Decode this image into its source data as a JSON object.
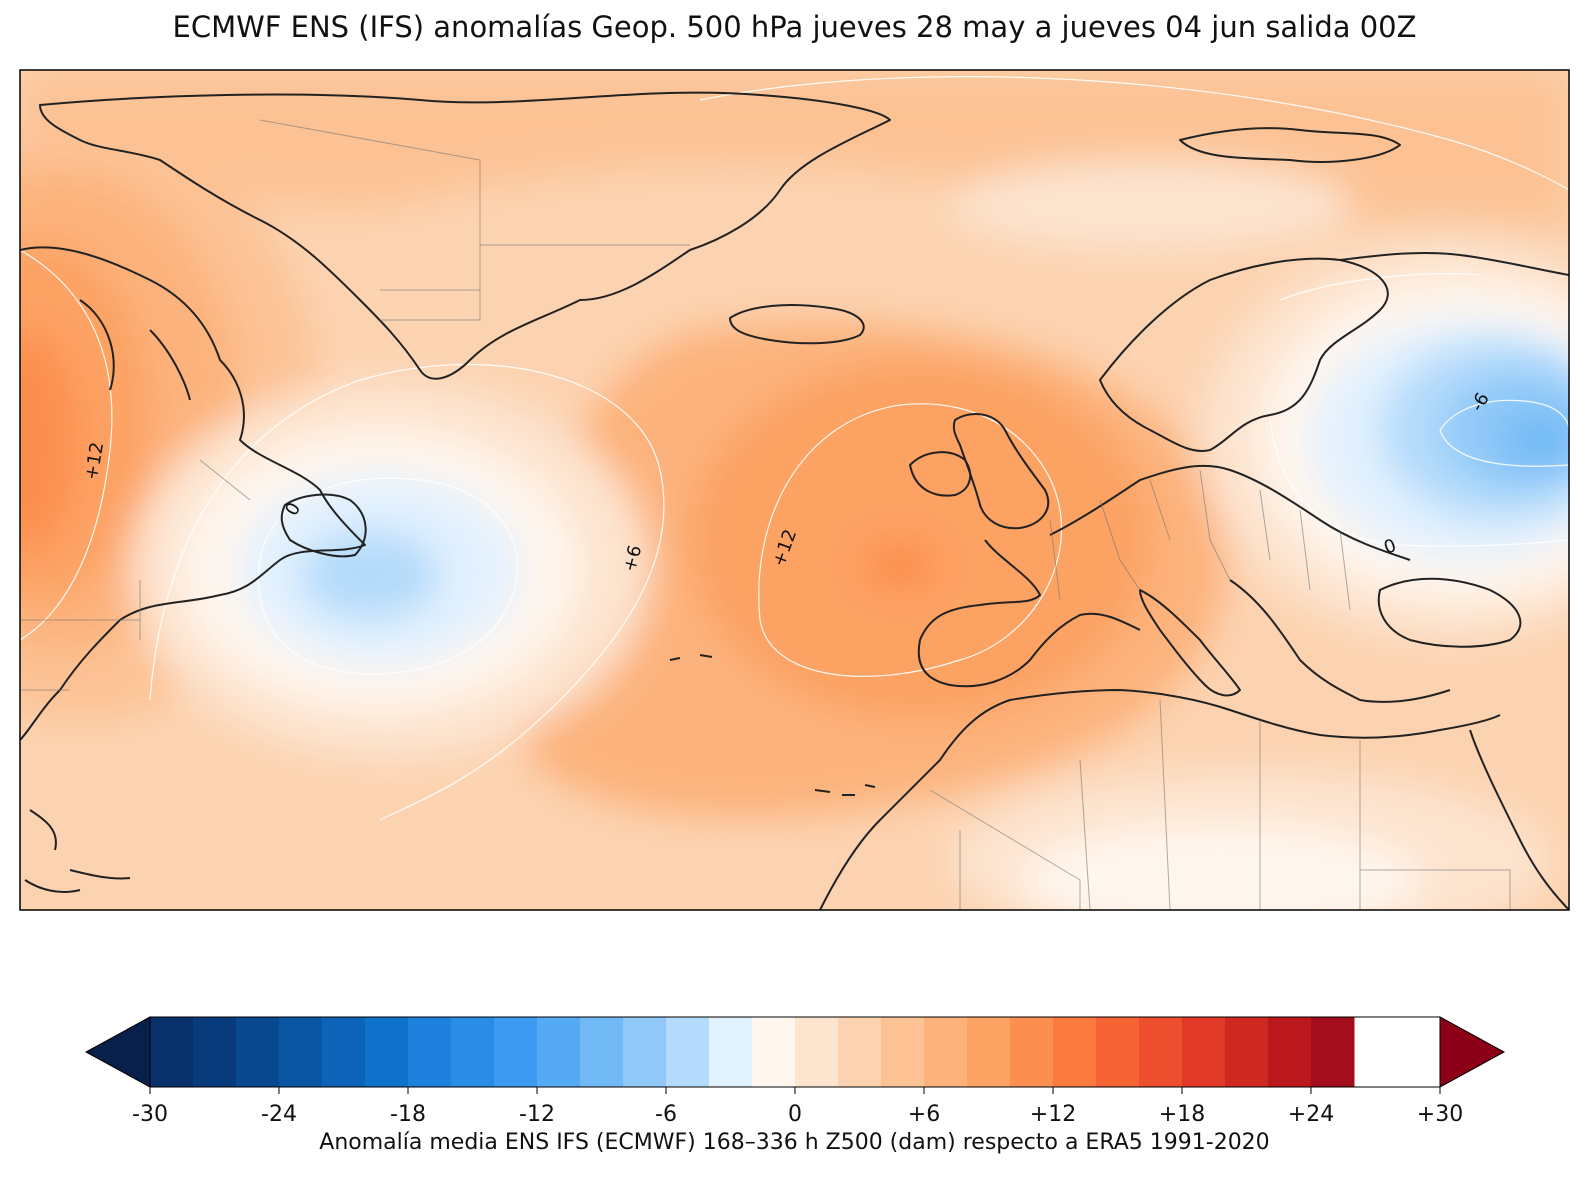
{
  "title": "ECMWF ENS (IFS) anomalías Geop. 500 hPa jueves 28 may a jueves 04 jun salida 00Z",
  "map": {
    "contour_labels": [
      "+12",
      "0",
      "+6",
      "+12",
      "-6",
      "0"
    ]
  },
  "colorbar": {
    "label": "Anomalía media ENS IFS (ECMWF) 168–336 h Z500 (dam) respecto a ERA5 1991-2020",
    "min": -30,
    "max": 30,
    "step": 2,
    "tick_labels": [
      "-30",
      "-24",
      "-18",
      "-12",
      "-6",
      "0",
      "+6",
      "+12",
      "+18",
      "+24",
      "+30"
    ],
    "under_color": "#08204a",
    "over_color": "#8b0016",
    "colors": [
      "#08306b",
      "#083b7c",
      "#08488e",
      "#0a56a3",
      "#0d63b8",
      "#1172cc",
      "#1f80dd",
      "#2b8ce8",
      "#3c9af0",
      "#55aaf3",
      "#72baf6",
      "#90c9f8",
      "#b4dbfb",
      "#e2f1fe",
      "#fff6ee",
      "#fde4cf",
      "#fcd3b1",
      "#fcc294",
      "#fcb27b",
      "#fca263",
      "#fc8f4f",
      "#fb7a40",
      "#f66435",
      "#ed4e2e",
      "#e03a27",
      "#cf2722",
      "#bb181d",
      "#a20e1c"
    ]
  }
}
